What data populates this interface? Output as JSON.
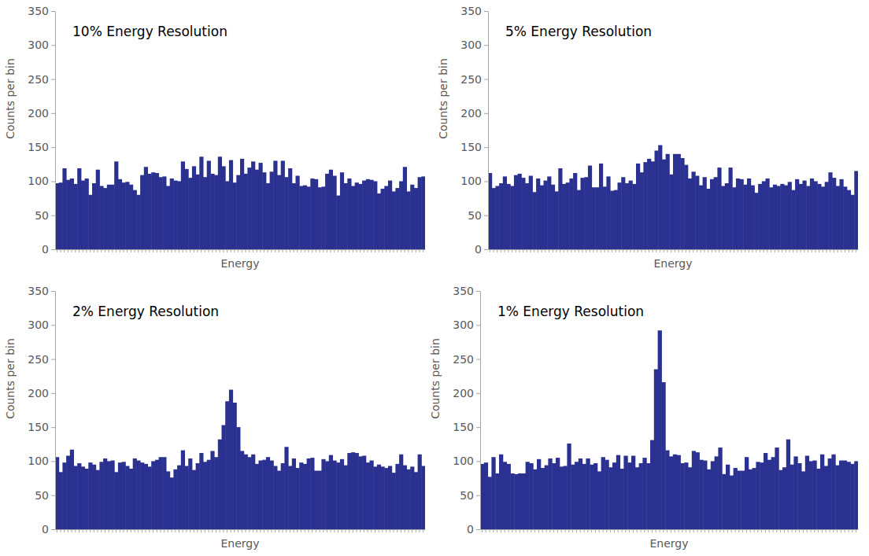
{
  "chart_data": [
    {
      "type": "bar",
      "title": "10% Energy Resolution",
      "x_label": "Energy",
      "y_label": "Counts per bin",
      "categories": [
        null,
        null,
        null,
        null,
        null,
        null,
        null,
        null,
        null,
        null,
        null,
        null,
        null,
        null,
        null,
        null,
        null,
        null,
        null,
        null,
        null,
        null,
        null,
        null,
        null,
        null,
        null,
        null,
        null,
        null,
        null,
        null,
        null,
        null,
        null,
        null,
        null,
        null,
        null,
        null,
        null,
        null,
        null,
        null,
        null,
        null,
        null,
        null,
        null,
        null,
        null,
        null,
        null,
        null,
        null,
        null,
        null,
        null,
        null,
        null,
        null,
        null,
        null,
        null,
        null,
        null,
        null,
        null,
        null,
        null,
        null,
        null,
        null,
        null,
        null,
        null,
        null,
        null,
        null,
        null,
        null,
        null,
        null,
        null,
        null,
        null,
        null,
        null,
        null,
        null,
        null,
        null,
        null,
        null,
        null,
        null,
        null,
        null,
        null,
        null
      ],
      "values": [
        97,
        98,
        119,
        102,
        104,
        96,
        119,
        101,
        104,
        80,
        97,
        117,
        93,
        90,
        95,
        95,
        129,
        103,
        98,
        99,
        95,
        87,
        80,
        109,
        121,
        111,
        113,
        112,
        106,
        107,
        93,
        104,
        101,
        100,
        129,
        118,
        105,
        122,
        110,
        136,
        106,
        130,
        111,
        109,
        136,
        122,
        100,
        131,
        98,
        109,
        133,
        111,
        120,
        129,
        117,
        127,
        113,
        97,
        114,
        130,
        109,
        130,
        106,
        119,
        97,
        108,
        93,
        94,
        92,
        104,
        103,
        91,
        92,
        111,
        117,
        108,
        79,
        113,
        97,
        104,
        93,
        98,
        96,
        101,
        103,
        102,
        100,
        82,
        89,
        93,
        101,
        85,
        90,
        100,
        121,
        85,
        95,
        90,
        106,
        107
      ],
      "color": "#2b3190",
      "ylim": [
        0,
        350
      ],
      "yticks": [
        0,
        50,
        100,
        150,
        200,
        250,
        300,
        350
      ],
      "grid": false,
      "tick_labels": "y"
    },
    {
      "type": "bar",
      "title": "5% Energy Resolution",
      "x_label": "Energy",
      "y_label": "Counts per bin",
      "categories": [
        null,
        null,
        null,
        null,
        null,
        null,
        null,
        null,
        null,
        null,
        null,
        null,
        null,
        null,
        null,
        null,
        null,
        null,
        null,
        null,
        null,
        null,
        null,
        null,
        null,
        null,
        null,
        null,
        null,
        null,
        null,
        null,
        null,
        null,
        null,
        null,
        null,
        null,
        null,
        null,
        null,
        null,
        null,
        null,
        null,
        null,
        null,
        null,
        null,
        null,
        null,
        null,
        null,
        null,
        null,
        null,
        null,
        null,
        null,
        null,
        null,
        null,
        null,
        null,
        null,
        null,
        null,
        null,
        null,
        null,
        null,
        null,
        null,
        null,
        null,
        null,
        null,
        null,
        null,
        null,
        null,
        null,
        null,
        null,
        null,
        null,
        null,
        null,
        null,
        null,
        null,
        null,
        null,
        null,
        null,
        null,
        null,
        null,
        null,
        null
      ],
      "values": [
        112,
        90,
        93,
        97,
        107,
        96,
        93,
        109,
        111,
        105,
        97,
        108,
        84,
        104,
        94,
        101,
        107,
        95,
        85,
        119,
        96,
        98,
        104,
        112,
        87,
        105,
        106,
        123,
        91,
        91,
        126,
        92,
        107,
        86,
        87,
        98,
        106,
        97,
        101,
        96,
        126,
        113,
        128,
        133,
        129,
        145,
        153,
        132,
        140,
        110,
        140,
        140,
        134,
        124,
        104,
        114,
        108,
        94,
        106,
        89,
        103,
        106,
        120,
        93,
        97,
        120,
        91,
        104,
        103,
        95,
        104,
        94,
        83,
        96,
        100,
        104,
        91,
        95,
        93,
        96,
        94,
        99,
        87,
        103,
        96,
        101,
        93,
        104,
        100,
        96,
        92,
        99,
        113,
        105,
        93,
        103,
        92,
        87,
        80,
        115
      ],
      "color": "#2b3190",
      "ylim": [
        0,
        350
      ],
      "yticks": [
        0,
        50,
        100,
        150,
        200,
        250,
        300,
        350
      ],
      "grid": false,
      "tick_labels": "y"
    },
    {
      "type": "bar",
      "title": "2% Energy Resolution",
      "x_label": "Energy",
      "y_label": "Counts per bin",
      "categories": [
        null,
        null,
        null,
        null,
        null,
        null,
        null,
        null,
        null,
        null,
        null,
        null,
        null,
        null,
        null,
        null,
        null,
        null,
        null,
        null,
        null,
        null,
        null,
        null,
        null,
        null,
        null,
        null,
        null,
        null,
        null,
        null,
        null,
        null,
        null,
        null,
        null,
        null,
        null,
        null,
        null,
        null,
        null,
        null,
        null,
        null,
        null,
        null,
        null,
        null,
        null,
        null,
        null,
        null,
        null,
        null,
        null,
        null,
        null,
        null,
        null,
        null,
        null,
        null,
        null,
        null,
        null,
        null,
        null,
        null,
        null,
        null,
        null,
        null,
        null,
        null,
        null,
        null,
        null,
        null,
        null,
        null,
        null,
        null,
        null,
        null,
        null,
        null,
        null,
        null,
        null,
        null,
        null,
        null,
        null,
        null,
        null,
        null,
        null,
        null
      ],
      "values": [
        106,
        84,
        98,
        108,
        117,
        93,
        97,
        92,
        89,
        98,
        95,
        87,
        99,
        104,
        100,
        101,
        84,
        98,
        99,
        93,
        89,
        104,
        101,
        98,
        96,
        92,
        100,
        102,
        106,
        106,
        85,
        76,
        88,
        94,
        116,
        93,
        104,
        87,
        97,
        112,
        99,
        102,
        115,
        106,
        132,
        153,
        188,
        205,
        186,
        150,
        115,
        110,
        106,
        110,
        96,
        101,
        102,
        106,
        101,
        93,
        86,
        97,
        121,
        93,
        104,
        90,
        98,
        96,
        104,
        105,
        86,
        86,
        103,
        100,
        109,
        101,
        98,
        103,
        94,
        112,
        113,
        112,
        107,
        108,
        98,
        101,
        92,
        95,
        92,
        90,
        93,
        83,
        96,
        110,
        94,
        88,
        92,
        84,
        110,
        93
      ],
      "color": "#2b3190",
      "ylim": [
        0,
        350
      ],
      "yticks": [
        0,
        50,
        100,
        150,
        200,
        250,
        300,
        350
      ],
      "grid": false,
      "tick_labels": "y"
    },
    {
      "type": "bar",
      "title": "1% Energy Resolution",
      "x_label": "Energy",
      "y_label": "Counts per bin",
      "categories": [
        null,
        null,
        null,
        null,
        null,
        null,
        null,
        null,
        null,
        null,
        null,
        null,
        null,
        null,
        null,
        null,
        null,
        null,
        null,
        null,
        null,
        null,
        null,
        null,
        null,
        null,
        null,
        null,
        null,
        null,
        null,
        null,
        null,
        null,
        null,
        null,
        null,
        null,
        null,
        null,
        null,
        null,
        null,
        null,
        null,
        null,
        null,
        null,
        null,
        null,
        null,
        null,
        null,
        null,
        null,
        null,
        null,
        null,
        null,
        null,
        null,
        null,
        null,
        null,
        null,
        null,
        null,
        null,
        null,
        null,
        null,
        null,
        null,
        null,
        null,
        null,
        null,
        null,
        null,
        null,
        null,
        null,
        null,
        null,
        null,
        null,
        null,
        null,
        null,
        null,
        null,
        null,
        null,
        null,
        null,
        null,
        null,
        null,
        null,
        null
      ],
      "values": [
        96,
        98,
        77,
        106,
        82,
        110,
        99,
        96,
        82,
        81,
        82,
        82,
        99,
        97,
        88,
        103,
        90,
        94,
        104,
        97,
        105,
        92,
        93,
        126,
        95,
        99,
        104,
        96,
        104,
        95,
        97,
        85,
        106,
        102,
        91,
        98,
        109,
        89,
        108,
        98,
        108,
        91,
        97,
        105,
        97,
        131,
        235,
        292,
        216,
        116,
        107,
        110,
        109,
        97,
        98,
        91,
        115,
        113,
        102,
        101,
        88,
        100,
        107,
        120,
        81,
        95,
        79,
        90,
        86,
        86,
        106,
        88,
        90,
        99,
        98,
        112,
        102,
        106,
        120,
        87,
        91,
        132,
        95,
        107,
        97,
        85,
        108,
        100,
        101,
        89,
        110,
        93,
        104,
        110,
        94,
        101,
        101,
        99,
        96,
        100
      ],
      "color": "#2b3190",
      "ylim": [
        0,
        350
      ],
      "yticks": [
        0,
        50,
        100,
        150,
        200,
        250,
        300,
        350
      ],
      "grid": false,
      "tick_labels": "y"
    }
  ]
}
